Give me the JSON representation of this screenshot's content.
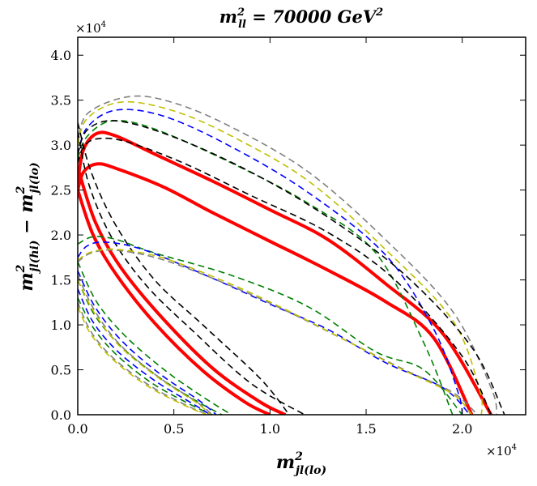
{
  "chart_data": {
    "type": "line",
    "title": "m_ll^2 = 70000 GeV^2",
    "title_parts": {
      "main": "m",
      "sup": "2",
      "sub": "ll",
      "rest": " = 70000 GeV",
      "rest_sup": "2"
    },
    "xlabel": "m_jl(lo)^2",
    "xlabel_parts": {
      "main": "m",
      "sup": "2",
      "sub": "jl(lo)"
    },
    "ylabel": "m_jl(hi)^2 - m_jl(lo)^2",
    "ylabel_parts": {
      "main1": "m",
      "sup1": "2",
      "sub1": "jl(hi)",
      "minus": " − ",
      "main2": "m",
      "sup2": "2",
      "sub2": "jl(lo)"
    },
    "x_exponent": "×10",
    "x_exponent_power": "4",
    "y_exponent": "×10",
    "y_exponent_power": "4",
    "xlim": [
      0,
      23300
    ],
    "ylim": [
      0,
      42000
    ],
    "xticks": [
      0,
      5000,
      10000,
      15000,
      20000
    ],
    "xtick_labels": [
      "0.0",
      "0.5",
      "1.0",
      "1.5",
      "2.0"
    ],
    "yticks": [
      0,
      5000,
      10000,
      15000,
      20000,
      25000,
      30000,
      35000,
      40000
    ],
    "ytick_labels": [
      "0.0",
      "0.5",
      "1.0",
      "1.5",
      "2.0",
      "2.5",
      "3.0",
      "3.5",
      "4.0"
    ],
    "colors": {
      "red": "#ff0000",
      "black": "#000000",
      "gray": "#808080",
      "yellow": "#bfbf00",
      "blue": "#0000ff",
      "green": "#008000"
    },
    "series": [
      {
        "name": "red-outer-upper",
        "color": "red",
        "style": "solid",
        "points": [
          [
            0,
            26000
          ],
          [
            300,
            29500
          ],
          [
            1000,
            31300
          ],
          [
            2000,
            31000
          ],
          [
            4000,
            29000
          ],
          [
            7000,
            26000
          ],
          [
            10000,
            22800
          ],
          [
            13000,
            19500
          ],
          [
            16000,
            14600
          ],
          [
            19000,
            9000
          ],
          [
            21500,
            0
          ]
        ]
      },
      {
        "name": "red-inner-upper",
        "color": "red",
        "style": "solid",
        "points": [
          [
            0,
            25000
          ],
          [
            300,
            27000
          ],
          [
            1000,
            27900
          ],
          [
            2000,
            27400
          ],
          [
            4500,
            25300
          ],
          [
            7000,
            22500
          ],
          [
            10000,
            19300
          ],
          [
            13000,
            16100
          ],
          [
            16000,
            12600
          ],
          [
            18500,
            8600
          ],
          [
            20500,
            0
          ]
        ]
      },
      {
        "name": "red-lower-a",
        "color": "red",
        "style": "solid",
        "points": [
          [
            0,
            25000
          ],
          [
            800,
            20000
          ],
          [
            2000,
            15600
          ],
          [
            4000,
            10200
          ],
          [
            6500,
            4900
          ],
          [
            8700,
            1400
          ],
          [
            10000,
            0
          ]
        ]
      },
      {
        "name": "red-lower-b",
        "color": "red",
        "style": "solid",
        "points": [
          [
            0,
            27500
          ],
          [
            900,
            21500
          ],
          [
            2200,
            16500
          ],
          [
            4300,
            11000
          ],
          [
            7000,
            5200
          ],
          [
            9500,
            1400
          ],
          [
            10800,
            0
          ]
        ]
      },
      {
        "name": "gray-upper",
        "color": "gray",
        "style": "dashed",
        "points": [
          [
            0,
            30000
          ],
          [
            500,
            33500
          ],
          [
            2700,
            35400
          ],
          [
            5000,
            34700
          ],
          [
            8000,
            32000
          ],
          [
            12000,
            27000
          ],
          [
            16000,
            19500
          ],
          [
            19500,
            11500
          ],
          [
            21500,
            3000
          ],
          [
            21800,
            0
          ]
        ]
      },
      {
        "name": "yellow-upper",
        "color": "yellow",
        "style": "dashed",
        "points": [
          [
            0,
            30000
          ],
          [
            500,
            33000
          ],
          [
            2300,
            34800
          ],
          [
            5000,
            33800
          ],
          [
            8000,
            31000
          ],
          [
            12000,
            26000
          ],
          [
            16000,
            18400
          ],
          [
            19500,
            10500
          ],
          [
            20900,
            2800
          ],
          [
            21000,
            0
          ]
        ]
      },
      {
        "name": "blue-upper",
        "color": "blue",
        "style": "dashed",
        "points": [
          [
            0,
            29000
          ],
          [
            500,
            32000
          ],
          [
            2000,
            33900
          ],
          [
            4500,
            33200
          ],
          [
            8000,
            29800
          ],
          [
            12000,
            24700
          ],
          [
            16000,
            17800
          ],
          [
            18500,
            9600
          ],
          [
            19800,
            2400
          ],
          [
            20000,
            0
          ]
        ]
      },
      {
        "name": "green-upper",
        "color": "green",
        "style": "dashed",
        "points": [
          [
            0,
            28500
          ],
          [
            500,
            31000
          ],
          [
            1800,
            32700
          ],
          [
            4000,
            31800
          ],
          [
            8000,
            28000
          ],
          [
            12000,
            23500
          ],
          [
            15500,
            18000
          ],
          [
            18000,
            8000
          ],
          [
            19500,
            0
          ]
        ]
      },
      {
        "name": "black-upper-a",
        "color": "black",
        "style": "dashed",
        "points": [
          [
            0,
            29000
          ],
          [
            500,
            31700
          ],
          [
            2000,
            32700
          ],
          [
            5000,
            30900
          ],
          [
            9000,
            27000
          ],
          [
            13000,
            22000
          ],
          [
            17000,
            15600
          ],
          [
            20500,
            7500
          ],
          [
            22200,
            0
          ]
        ]
      },
      {
        "name": "black-upper-b",
        "color": "black",
        "style": "dashed",
        "points": [
          [
            0,
            28000
          ],
          [
            300,
            29800
          ],
          [
            1000,
            30700
          ],
          [
            2500,
            30400
          ],
          [
            5500,
            28000
          ],
          [
            9000,
            24400
          ],
          [
            13000,
            20300
          ],
          [
            16500,
            15000
          ],
          [
            20000,
            6500
          ],
          [
            21500,
            0
          ]
        ]
      },
      {
        "name": "black-lower-a",
        "color": "black",
        "style": "dashed",
        "points": [
          [
            0,
            32500
          ],
          [
            700,
            27000
          ],
          [
            2000,
            21000
          ],
          [
            4000,
            15000
          ],
          [
            6500,
            10000
          ],
          [
            9500,
            4000
          ],
          [
            11000,
            0
          ]
        ]
      },
      {
        "name": "black-lower-b",
        "color": "black",
        "style": "dashed",
        "points": [
          [
            0,
            31500
          ],
          [
            600,
            25500
          ],
          [
            1800,
            19600
          ],
          [
            3600,
            14300
          ],
          [
            6000,
            9300
          ],
          [
            9000,
            3500
          ],
          [
            11800,
            0
          ]
        ]
      },
      {
        "name": "green-mid-upper",
        "color": "green",
        "style": "dashed",
        "points": [
          [
            0,
            19000
          ],
          [
            800,
            19800
          ],
          [
            2000,
            19500
          ],
          [
            4000,
            18000
          ],
          [
            8000,
            15500
          ],
          [
            12000,
            12000
          ],
          [
            15500,
            7000
          ],
          [
            18000,
            5000
          ],
          [
            20000,
            0
          ]
        ]
      },
      {
        "name": "blue-mid-upper",
        "color": "blue",
        "style": "dashed",
        "points": [
          [
            0,
            17500
          ],
          [
            500,
            18800
          ],
          [
            1500,
            19200
          ],
          [
            3500,
            18300
          ],
          [
            7000,
            15200
          ],
          [
            10000,
            12300
          ],
          [
            13000,
            9500
          ],
          [
            16000,
            5800
          ],
          [
            19000,
            3000
          ],
          [
            20400,
            0
          ]
        ]
      },
      {
        "name": "gray-mid-upper",
        "color": "gray",
        "style": "dashed",
        "points": [
          [
            0,
            17000
          ],
          [
            700,
            18000
          ],
          [
            2000,
            18300
          ],
          [
            4500,
            17200
          ],
          [
            8000,
            14300
          ],
          [
            11000,
            11400
          ],
          [
            14000,
            8200
          ],
          [
            17000,
            5000
          ],
          [
            19500,
            2500
          ],
          [
            20800,
            0
          ]
        ]
      },
      {
        "name": "yellow-mid-upper",
        "color": "yellow",
        "style": "dashed",
        "points": [
          [
            0,
            17200
          ],
          [
            700,
            18100
          ],
          [
            2000,
            18400
          ],
          [
            4500,
            17400
          ],
          [
            8000,
            14500
          ],
          [
            11000,
            11500
          ],
          [
            14000,
            8200
          ],
          [
            17000,
            4900
          ],
          [
            19500,
            2300
          ],
          [
            20500,
            0
          ]
        ]
      },
      {
        "name": "green-lower-a",
        "color": "green",
        "style": "dashed",
        "points": [
          [
            0,
            17000
          ],
          [
            1000,
            12500
          ],
          [
            2500,
            8700
          ],
          [
            4500,
            5000
          ],
          [
            6500,
            2000
          ],
          [
            8000,
            0
          ]
        ]
      },
      {
        "name": "green-lower-b",
        "color": "green",
        "style": "dashed",
        "points": [
          [
            0,
            15000
          ],
          [
            900,
            11000
          ],
          [
            2300,
            7500
          ],
          [
            4200,
            4200
          ],
          [
            6200,
            1500
          ],
          [
            7500,
            0
          ]
        ]
      },
      {
        "name": "green-lower-c",
        "color": "green",
        "style": "dashed",
        "points": [
          [
            0,
            13000
          ],
          [
            800,
            9700
          ],
          [
            2000,
            6700
          ],
          [
            3800,
            3600
          ],
          [
            5800,
            1200
          ],
          [
            7000,
            0
          ]
        ]
      },
      {
        "name": "blue-lower-a",
        "color": "blue",
        "style": "dashed",
        "points": [
          [
            0,
            16000
          ],
          [
            900,
            12000
          ],
          [
            2300,
            8200
          ],
          [
            4300,
            4500
          ],
          [
            6300,
            1600
          ],
          [
            7200,
            0
          ]
        ]
      },
      {
        "name": "blue-lower-b",
        "color": "blue",
        "style": "dashed",
        "points": [
          [
            0,
            14000
          ],
          [
            800,
            10300
          ],
          [
            2100,
            7000
          ],
          [
            4000,
            3800
          ],
          [
            6000,
            1200
          ],
          [
            6900,
            0
          ]
        ]
      },
      {
        "name": "gray-lower-a",
        "color": "gray",
        "style": "dashed",
        "points": [
          [
            0,
            15500
          ],
          [
            900,
            11500
          ],
          [
            2200,
            7800
          ],
          [
            4200,
            4200
          ],
          [
            6200,
            1400
          ],
          [
            7000,
            0
          ]
        ]
      },
      {
        "name": "gray-lower-b",
        "color": "gray",
        "style": "dashed",
        "points": [
          [
            0,
            12500
          ],
          [
            700,
            9200
          ],
          [
            1900,
            6200
          ],
          [
            3700,
            3300
          ],
          [
            5700,
            1000
          ],
          [
            6800,
            0
          ]
        ]
      },
      {
        "name": "yellow-lower-a",
        "color": "yellow",
        "style": "dashed",
        "points": [
          [
            0,
            15000
          ],
          [
            900,
            11200
          ],
          [
            2200,
            7600
          ],
          [
            4200,
            4100
          ],
          [
            6200,
            1300
          ],
          [
            6900,
            0
          ]
        ]
      },
      {
        "name": "yellow-lower-b",
        "color": "yellow",
        "style": "dashed",
        "points": [
          [
            0,
            12000
          ],
          [
            700,
            8900
          ],
          [
            1900,
            6000
          ],
          [
            3700,
            3100
          ],
          [
            5700,
            900
          ],
          [
            6700,
            0
          ]
        ]
      }
    ]
  }
}
